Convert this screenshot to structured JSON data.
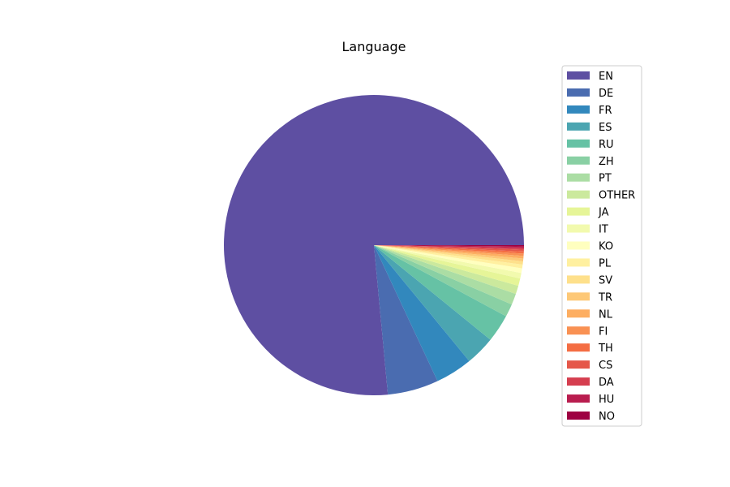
{
  "chart_data": {
    "type": "pie",
    "title": "Language",
    "start_angle_deg": 0,
    "direction": "counterclockwise",
    "legend_position": "right",
    "slices": [
      {
        "label": "EN",
        "value": 76.7,
        "color": "#5e4fa2"
      },
      {
        "label": "DE",
        "value": 5.5,
        "color": "#4a6cb0"
      },
      {
        "label": "FR",
        "value": 4.0,
        "color": "#3288bd"
      },
      {
        "label": "ES",
        "value": 3.2,
        "color": "#4ba5b1"
      },
      {
        "label": "RU",
        "value": 3.0,
        "color": "#66c2a5"
      },
      {
        "label": "ZH",
        "value": 1.4,
        "color": "#89d0a4"
      },
      {
        "label": "PT",
        "value": 1.2,
        "color": "#abdda4"
      },
      {
        "label": "OTHER",
        "value": 0.9,
        "color": "#cbe99d"
      },
      {
        "label": "JA",
        "value": 0.8,
        "color": "#e6f598"
      },
      {
        "label": "IT",
        "value": 0.6,
        "color": "#f2faae"
      },
      {
        "label": "KO",
        "value": 0.5,
        "color": "#ffffbf"
      },
      {
        "label": "PL",
        "value": 0.4,
        "color": "#fff0a0"
      },
      {
        "label": "SV",
        "value": 0.35,
        "color": "#fee08b"
      },
      {
        "label": "TR",
        "value": 0.3,
        "color": "#fdc877"
      },
      {
        "label": "NL",
        "value": 0.28,
        "color": "#fdae61"
      },
      {
        "label": "FI",
        "value": 0.25,
        "color": "#f99153"
      },
      {
        "label": "TH",
        "value": 0.22,
        "color": "#f46d43"
      },
      {
        "label": "CS",
        "value": 0.2,
        "color": "#e55749"
      },
      {
        "label": "DA",
        "value": 0.18,
        "color": "#d53e4f"
      },
      {
        "label": "HU",
        "value": 0.16,
        "color": "#b91d4f"
      },
      {
        "label": "NO",
        "value": 0.14,
        "color": "#9e0142"
      }
    ]
  }
}
